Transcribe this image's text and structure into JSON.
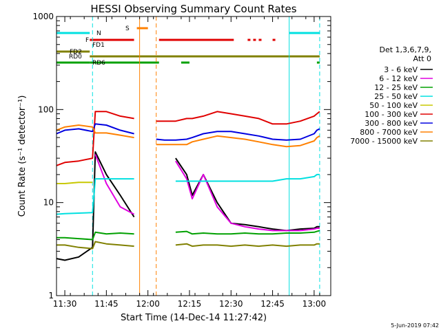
{
  "chart_data": {
    "type": "line",
    "title": "HESSI Observing Summary Count Rates",
    "xlabel": "Start Time (14-Dec-14 11:27:42)",
    "ylabel": "Count Rate (s⁻¹ detector⁻¹)",
    "xlim": [
      "11:27",
      "13:06"
    ],
    "ylim": [
      1,
      1000
    ],
    "y_scale": "log",
    "x_ticks": [
      "11:30",
      "11:45",
      "12:00",
      "12:15",
      "12:30",
      "12:45",
      "13:00"
    ],
    "y_ticks": [
      "1",
      "10",
      "100",
      "1000"
    ],
    "date_stamp": "5-Jun-2019 07:42",
    "legend": {
      "placement": "right",
      "header_lines": [
        "Det 1,3,6,7,9,",
        "Att 0"
      ]
    },
    "x": [
      "11:27",
      "11:30",
      "11:35",
      "11:40",
      "11:41",
      "11:45",
      "11:50",
      "11:55",
      "11:57",
      "12:03",
      "12:06",
      "12:10",
      "12:14",
      "12:16",
      "12:20",
      "12:25",
      "12:30",
      "12:35",
      "12:40",
      "12:45",
      "12:50",
      "12:55",
      "13:00",
      "13:01",
      "13:02"
    ],
    "series": [
      {
        "name": "3 - 6 keV",
        "color": "#000000",
        "values": [
          2.5,
          2.4,
          2.6,
          3.3,
          35,
          20,
          12,
          7,
          null,
          null,
          null,
          30,
          20,
          12,
          20,
          10,
          6,
          5.8,
          5.5,
          5.2,
          5.0,
          5.2,
          5.3,
          5.5,
          5.5
        ]
      },
      {
        "name": "6 - 12 keV",
        "color": "#e000e0",
        "values": [
          null,
          null,
          null,
          null,
          33,
          16,
          9,
          7.5,
          null,
          null,
          null,
          28,
          18,
          11,
          20,
          9,
          6,
          5.5,
          5.2,
          5.0,
          5.0,
          5.0,
          5.2,
          5.3,
          5.3
        ]
      },
      {
        "name": "12 - 25 keV",
        "color": "#00a000",
        "values": [
          4.2,
          4.2,
          4.1,
          4.0,
          4.8,
          4.6,
          4.7,
          4.6,
          null,
          null,
          null,
          4.8,
          4.9,
          4.6,
          4.7,
          4.6,
          4.6,
          4.7,
          4.6,
          4.6,
          4.7,
          4.7,
          4.8,
          4.9,
          5.0
        ]
      },
      {
        "name": "25 - 50 keV",
        "color": "#00e0e0",
        "values": [
          7.5,
          7.6,
          7.7,
          7.8,
          18,
          18,
          18,
          18,
          null,
          null,
          null,
          17,
          17,
          17,
          17,
          17,
          17,
          17,
          17,
          17,
          18,
          18,
          19,
          20,
          20
        ]
      },
      {
        "name": "50 - 100 keV",
        "color": "#c8c800",
        "values": [
          16,
          16,
          16.5,
          16.5,
          null,
          null,
          null,
          null,
          null,
          null,
          null,
          null,
          null,
          null,
          null,
          null,
          null,
          null,
          null,
          null,
          null,
          null,
          null,
          null,
          null
        ]
      },
      {
        "name": "100 - 300 keV",
        "color": "#e00000",
        "values": [
          25,
          27,
          28,
          30,
          95,
          95,
          85,
          80,
          null,
          75,
          75,
          75,
          80,
          80,
          85,
          95,
          90,
          85,
          80,
          70,
          70,
          75,
          85,
          90,
          95
        ]
      },
      {
        "name": "300 - 800 keV",
        "color": "#0000e0",
        "values": [
          55,
          60,
          62,
          58,
          70,
          68,
          60,
          55,
          null,
          48,
          47,
          47,
          48,
          50,
          55,
          58,
          58,
          55,
          52,
          48,
          47,
          48,
          55,
          60,
          62
        ]
      },
      {
        "name": "800 - 7000 keV",
        "color": "#ff8000",
        "values": [
          60,
          65,
          68,
          65,
          56,
          56,
          53,
          50,
          null,
          42,
          42,
          42,
          42,
          45,
          48,
          52,
          50,
          48,
          45,
          42,
          40,
          41,
          46,
          50,
          52
        ]
      },
      {
        "name": "7000 - 15000 keV",
        "color": "#808000",
        "values": [
          3.5,
          3.5,
          3.3,
          3.2,
          3.8,
          3.6,
          3.5,
          3.4,
          null,
          null,
          null,
          3.5,
          3.6,
          3.4,
          3.5,
          3.5,
          3.4,
          3.5,
          3.4,
          3.5,
          3.4,
          3.5,
          3.5,
          3.6,
          3.6
        ]
      }
    ],
    "flag_bars": [
      {
        "label": "N",
        "color": "#00e0e0",
        "segments": [
          [
            "11:27",
            "11:39"
          ],
          [
            "12:51",
            "13:02"
          ]
        ]
      },
      {
        "label": "S",
        "color": "#ff8000",
        "segments": [
          [
            "11:56",
            "12:00"
          ]
        ]
      },
      {
        "label": "F",
        "color": "#e00000",
        "segments": [
          [
            "11:39",
            "11:55"
          ],
          [
            "12:04",
            "12:31"
          ],
          [
            "12:36",
            "12:37"
          ],
          [
            "12:38",
            "12:39"
          ],
          [
            "12:40",
            "12:41"
          ],
          [
            "12:45",
            "12:46"
          ]
        ]
      },
      {
        "label": "FD1",
        "color": "#e00000",
        "segments": []
      },
      {
        "label": "FD2",
        "color": "#808000",
        "segments": [
          [
            "11:27",
            "11:39"
          ]
        ]
      },
      {
        "label": "RD0",
        "color": "#808000",
        "segments": [
          [
            "11:39",
            "13:02"
          ]
        ]
      },
      {
        "label": "RD6",
        "color": "#00a000",
        "segments": [
          [
            "11:27",
            "11:39"
          ],
          [
            "11:39",
            "12:04"
          ],
          [
            "12:12",
            "12:15"
          ],
          [
            "13:01",
            "13:02"
          ]
        ]
      }
    ],
    "vertical_markers": [
      {
        "x": "11:27",
        "color": "#00e0e0",
        "style": "solid"
      },
      {
        "x": "11:40",
        "color": "#00e0e0",
        "style": "dashed"
      },
      {
        "x": "11:57",
        "color": "#ff8000",
        "style": "solid"
      },
      {
        "x": "12:03",
        "color": "#ff8000",
        "style": "dashed"
      },
      {
        "x": "12:51",
        "color": "#00e0e0",
        "style": "solid"
      },
      {
        "x": "13:02",
        "color": "#00e0e0",
        "style": "dashed"
      }
    ]
  }
}
